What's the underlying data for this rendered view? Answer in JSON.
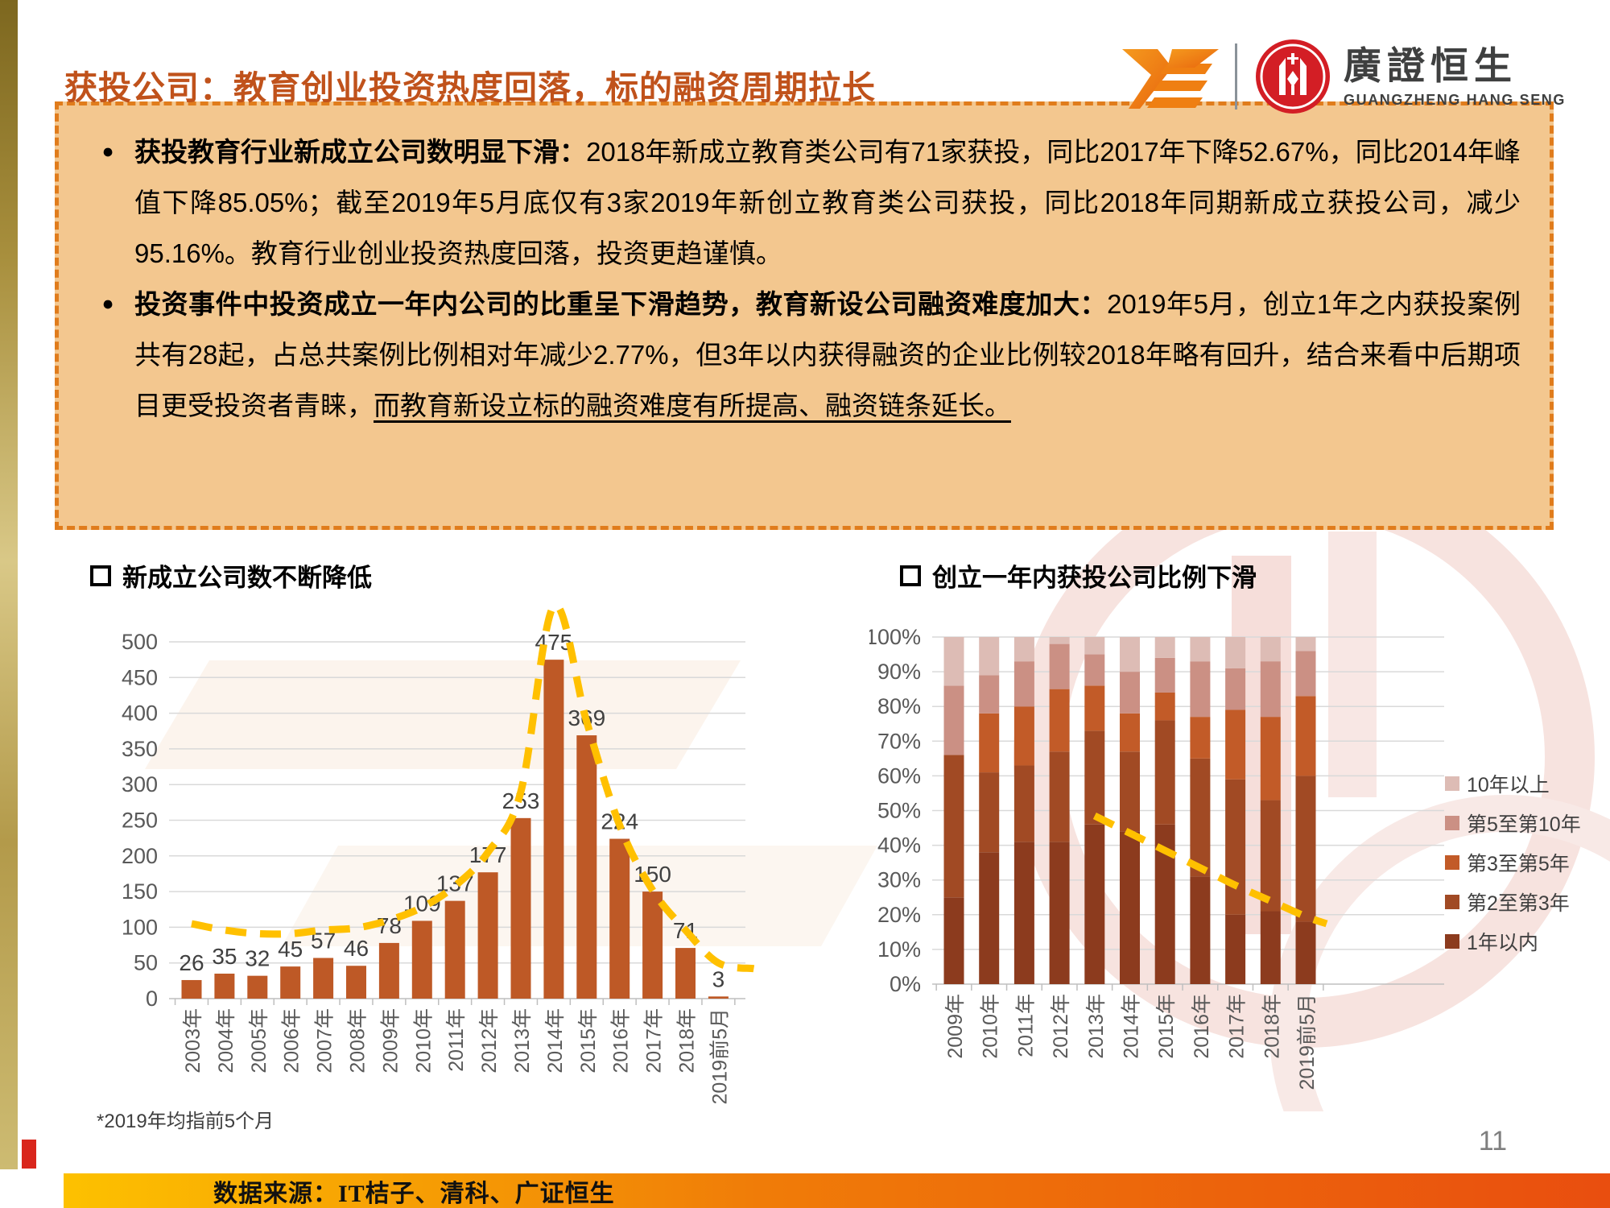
{
  "header": {
    "title": "获投公司：教育创业投资热度回落，标的融资周期拉长",
    "brand_cn": "廣證恒生",
    "brand_en": "GUANGZHENG HANG SENG"
  },
  "bullets": {
    "marker": "●",
    "item1": {
      "lead": "获投教育行业新成立公司数明显下滑：",
      "body": "2018年新成立教育类公司有71家获投，同比2017年下降52.67%，同比2014年峰值下降85.05%；截至2019年5月底仅有3家2019年新创立教育类公司获投，同比2018年同期新成立获投公司，减少95.16%。教育行业创业投资热度回落，投资更趋谨慎。"
    },
    "item2": {
      "lead": "投资事件中投资成立一年内公司的比重呈下滑趋势，教育新设公司融资难度加大：",
      "body": "2019年5月，创立1年之内获投案例共有28起，占总共案例比例相对年减少2.77%，但3年以内获得融资的企业比例较2018年略有回升，结合来看中后期项目更受投资者青睐，",
      "underlined": "而教育新设立标的融资难度有所提高、融资链条延长。"
    }
  },
  "chart_data": [
    {
      "type": "bar",
      "title": "新成立公司数不断降低",
      "categories": [
        "2003年",
        "2004年",
        "2005年",
        "2006年",
        "2007年",
        "2008年",
        "2009年",
        "2010年",
        "2011年",
        "2012年",
        "2013年",
        "2014年",
        "2015年",
        "2016年",
        "2017年",
        "2018年",
        "2019前5月"
      ],
      "values": [
        26,
        35,
        32,
        45,
        57,
        46,
        78,
        109,
        137,
        177,
        253,
        475,
        369,
        224,
        150,
        71,
        3
      ],
      "xlabel": "",
      "ylabel": "",
      "ylim": [
        0,
        500
      ],
      "ytick_step": 50,
      "grid": true,
      "bar_color": "#be5926",
      "label_color": "#404040",
      "axis_color": "#595959",
      "trend_line": {
        "color": "#ffc000",
        "style": "dashed",
        "values": [
          105,
          96,
          91,
          91,
          96,
          99,
          110,
          128,
          158,
          205,
          290,
          550,
          388,
          243,
          152,
          96,
          50
        ],
        "tail_value": 42
      },
      "footnote": "*2019年均指前5个月"
    },
    {
      "type": "stacked-bar-100",
      "title": "创立一年内获投公司比例下滑",
      "categories": [
        "2009年",
        "2010年",
        "2011年",
        "2012年",
        "2013年",
        "2014年",
        "2015年",
        "2016年",
        "2017年",
        "2018年",
        "2019前5月"
      ],
      "unit": "%",
      "ylim": [
        0,
        100
      ],
      "ytick_step": 10,
      "grid": true,
      "axis_color": "#595959",
      "series_bottom_to_top": [
        {
          "name": "1年以内",
          "color": "#8c3b1e",
          "values": [
            25,
            38,
            41,
            41,
            46,
            44,
            46,
            31,
            20,
            21,
            18
          ]
        },
        {
          "name": "第2至第3年",
          "color": "#a14a24",
          "values": [
            41,
            23,
            22,
            26,
            27,
            23,
            30,
            34,
            39,
            32,
            42
          ]
        },
        {
          "name": "第3至第5年",
          "color": "#c25b28",
          "values": [
            0,
            17,
            17,
            18,
            13,
            11,
            8,
            12,
            20,
            24,
            23
          ]
        },
        {
          "name": "第5至第10年",
          "color": "#cb9084",
          "values": [
            20,
            11,
            13,
            13,
            9,
            12,
            10,
            16,
            12,
            16,
            13
          ]
        },
        {
          "name": "10年以上",
          "color": "#ddbcb5",
          "values": [
            14,
            11,
            7,
            2,
            5,
            10,
            6,
            7,
            9,
            7,
            4
          ]
        }
      ],
      "legend": [
        "10年以上",
        "第5至第10年",
        "第3至第5年",
        "第2至第3年",
        "1年以内"
      ],
      "legend_position": "right",
      "trend_line": {
        "color": "#ffc000",
        "style": "dashed",
        "points": [
          {
            "category": "2013年",
            "value": 48.5
          },
          {
            "category": "2014年",
            "value": 43.5
          },
          {
            "category": "2015年",
            "value": 38.5
          },
          {
            "category": "2016年",
            "value": 33.5
          },
          {
            "category": "2017年",
            "value": 28.5
          },
          {
            "category": "2018年",
            "value": 24
          },
          {
            "category": "2019前5月",
            "value": 19.5
          }
        ]
      }
    }
  ],
  "footer": {
    "source": "数据来源：IT桔子、清科、广证恒生",
    "page_number": "11"
  }
}
